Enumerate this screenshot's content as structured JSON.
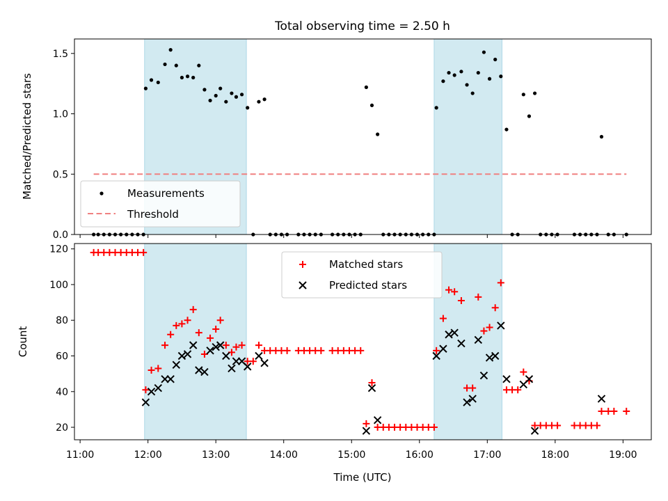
{
  "figure": {
    "title": "Total observing time = 2.50 h",
    "shaded_color": "#add8e6"
  },
  "chart_data": [
    {
      "type": "scatter",
      "ylabel": "Matched/Predicted stars",
      "xlim": [
        "10:55",
        "19:25"
      ],
      "ylim": [
        0,
        1.62
      ],
      "yticks": [
        "0.0",
        "0.5",
        "1.0",
        "1.5"
      ],
      "grid": false,
      "legend_position": "lower-left",
      "shaded_intervals": [
        [
          "11:57",
          "13:27"
        ],
        [
          "16:13",
          "17:13"
        ]
      ],
      "series": [
        {
          "name": "Measurements",
          "marker": "dot",
          "color": "#000000",
          "points": [
            [
              "11:12",
              0
            ],
            [
              "11:16",
              0
            ],
            [
              "11:21",
              0
            ],
            [
              "11:26",
              0
            ],
            [
              "11:31",
              0
            ],
            [
              "11:36",
              0
            ],
            [
              "11:41",
              0
            ],
            [
              "11:46",
              0
            ],
            [
              "11:51",
              0
            ],
            [
              "11:56",
              0
            ],
            [
              "11:58",
              1.21
            ],
            [
              "12:03",
              1.28
            ],
            [
              "12:09",
              1.26
            ],
            [
              "12:15",
              1.41
            ],
            [
              "12:20",
              1.53
            ],
            [
              "12:25",
              1.4
            ],
            [
              "12:30",
              1.3
            ],
            [
              "12:35",
              1.31
            ],
            [
              "12:40",
              1.3
            ],
            [
              "12:45",
              1.4
            ],
            [
              "12:50",
              1.2
            ],
            [
              "12:55",
              1.11
            ],
            [
              "13:00",
              1.15
            ],
            [
              "13:04",
              1.21
            ],
            [
              "13:09",
              1.1
            ],
            [
              "13:14",
              1.17
            ],
            [
              "13:18",
              1.14
            ],
            [
              "13:23",
              1.16
            ],
            [
              "13:28",
              1.05
            ],
            [
              "13:33",
              0
            ],
            [
              "13:38",
              1.1
            ],
            [
              "13:43",
              1.12
            ],
            [
              "13:48",
              0
            ],
            [
              "13:53",
              0
            ],
            [
              "13:58",
              0
            ],
            [
              "14:03",
              0
            ],
            [
              "14:13",
              0
            ],
            [
              "14:18",
              0
            ],
            [
              "14:23",
              0
            ],
            [
              "14:28",
              0
            ],
            [
              "14:33",
              0
            ],
            [
              "14:43",
              0
            ],
            [
              "14:48",
              0
            ],
            [
              "14:53",
              0
            ],
            [
              "14:58",
              0
            ],
            [
              "15:03",
              0
            ],
            [
              "15:08",
              0
            ],
            [
              "15:13",
              1.22
            ],
            [
              "15:18",
              1.07
            ],
            [
              "15:23",
              0.83
            ],
            [
              "15:28",
              0
            ],
            [
              "15:33",
              0
            ],
            [
              "15:38",
              0
            ],
            [
              "15:43",
              0
            ],
            [
              "15:48",
              0
            ],
            [
              "15:53",
              0
            ],
            [
              "15:58",
              0
            ],
            [
              "16:03",
              0
            ],
            [
              "16:08",
              0
            ],
            [
              "16:13",
              0
            ],
            [
              "16:15",
              1.05
            ],
            [
              "16:21",
              1.27
            ],
            [
              "16:26",
              1.34
            ],
            [
              "16:31",
              1.32
            ],
            [
              "16:37",
              1.35
            ],
            [
              "16:42",
              1.24
            ],
            [
              "16:47",
              1.17
            ],
            [
              "16:52",
              1.34
            ],
            [
              "16:57",
              1.51
            ],
            [
              "17:02",
              1.29
            ],
            [
              "17:07",
              1.45
            ],
            [
              "17:12",
              1.31
            ],
            [
              "17:17",
              0.87
            ],
            [
              "17:22",
              0
            ],
            [
              "17:27",
              0
            ],
            [
              "17:32",
              1.16
            ],
            [
              "17:37",
              0.98
            ],
            [
              "17:42",
              1.17
            ],
            [
              "17:47",
              0
            ],
            [
              "17:52",
              0
            ],
            [
              "17:57",
              0
            ],
            [
              "18:02",
              0
            ],
            [
              "18:17",
              0
            ],
            [
              "18:22",
              0
            ],
            [
              "18:27",
              0
            ],
            [
              "18:32",
              0
            ],
            [
              "18:37",
              0
            ],
            [
              "18:41",
              0.81
            ],
            [
              "18:47",
              0
            ],
            [
              "18:52",
              0
            ],
            [
              "19:03",
              0
            ]
          ]
        },
        {
          "name": "Threshold",
          "marker": "dashed-line",
          "color": "#f08080",
          "points": [
            [
              "11:12",
              0.5
            ],
            [
              "19:03",
              0.5
            ]
          ]
        }
      ]
    },
    {
      "type": "scatter",
      "xlabel": "Time (UTC)",
      "ylabel": "Count",
      "xlim": [
        "10:55",
        "19:25"
      ],
      "ylim": [
        13,
        123
      ],
      "xticks": [
        "11:00",
        "12:00",
        "13:00",
        "14:00",
        "15:00",
        "16:00",
        "17:00",
        "18:00",
        "19:00"
      ],
      "yticks": [
        "20",
        "40",
        "60",
        "80",
        "100",
        "120"
      ],
      "grid": false,
      "legend_position": "upper-center",
      "shaded_intervals": [
        [
          "11:57",
          "13:27"
        ],
        [
          "16:13",
          "17:13"
        ]
      ],
      "series": [
        {
          "name": "Matched stars",
          "marker": "plus",
          "color": "#ff0000",
          "points": [
            [
              "11:12",
              118
            ],
            [
              "11:16",
              118
            ],
            [
              "11:21",
              118
            ],
            [
              "11:26",
              118
            ],
            [
              "11:31",
              118
            ],
            [
              "11:36",
              118
            ],
            [
              "11:41",
              118
            ],
            [
              "11:46",
              118
            ],
            [
              "11:51",
              118
            ],
            [
              "11:56",
              118
            ],
            [
              "11:58",
              41
            ],
            [
              "12:03",
              52
            ],
            [
              "12:09",
              53
            ],
            [
              "12:15",
              66
            ],
            [
              "12:20",
              72
            ],
            [
              "12:25",
              77
            ],
            [
              "12:30",
              78
            ],
            [
              "12:35",
              80
            ],
            [
              "12:40",
              86
            ],
            [
              "12:45",
              73
            ],
            [
              "12:50",
              61
            ],
            [
              "12:55",
              70
            ],
            [
              "13:00",
              75
            ],
            [
              "13:04",
              80
            ],
            [
              "13:09",
              66
            ],
            [
              "13:14",
              62
            ],
            [
              "13:18",
              65
            ],
            [
              "13:23",
              66
            ],
            [
              "13:28",
              57
            ],
            [
              "13:33",
              57
            ],
            [
              "13:38",
              66
            ],
            [
              "13:43",
              63
            ],
            [
              "13:48",
              63
            ],
            [
              "13:53",
              63
            ],
            [
              "13:58",
              63
            ],
            [
              "14:03",
              63
            ],
            [
              "14:13",
              63
            ],
            [
              "14:18",
              63
            ],
            [
              "14:23",
              63
            ],
            [
              "14:28",
              63
            ],
            [
              "14:33",
              63
            ],
            [
              "14:43",
              63
            ],
            [
              "14:48",
              63
            ],
            [
              "14:53",
              63
            ],
            [
              "14:58",
              63
            ],
            [
              "15:03",
              63
            ],
            [
              "15:08",
              63
            ],
            [
              "15:13",
              22
            ],
            [
              "15:18",
              45
            ],
            [
              "15:23",
              20
            ],
            [
              "15:28",
              20
            ],
            [
              "15:33",
              20
            ],
            [
              "15:38",
              20
            ],
            [
              "15:43",
              20
            ],
            [
              "15:48",
              20
            ],
            [
              "15:53",
              20
            ],
            [
              "15:58",
              20
            ],
            [
              "16:03",
              20
            ],
            [
              "16:08",
              20
            ],
            [
              "16:13",
              20
            ],
            [
              "16:15",
              63
            ],
            [
              "16:21",
              81
            ],
            [
              "16:26",
              97
            ],
            [
              "16:31",
              96
            ],
            [
              "16:37",
              91
            ],
            [
              "16:42",
              42
            ],
            [
              "16:47",
              42
            ],
            [
              "16:52",
              93
            ],
            [
              "16:57",
              74
            ],
            [
              "17:02",
              76
            ],
            [
              "17:07",
              87
            ],
            [
              "17:12",
              101
            ],
            [
              "17:17",
              41
            ],
            [
              "17:22",
              41
            ],
            [
              "17:27",
              41
            ],
            [
              "17:32",
              51
            ],
            [
              "17:37",
              46
            ],
            [
              "17:42",
              21
            ],
            [
              "17:47",
              21
            ],
            [
              "17:52",
              21
            ],
            [
              "17:57",
              21
            ],
            [
              "18:02",
              21
            ],
            [
              "18:17",
              21
            ],
            [
              "18:22",
              21
            ],
            [
              "18:27",
              21
            ],
            [
              "18:32",
              21
            ],
            [
              "18:37",
              21
            ],
            [
              "18:41",
              29
            ],
            [
              "18:47",
              29
            ],
            [
              "18:52",
              29
            ],
            [
              "19:03",
              29
            ]
          ]
        },
        {
          "name": "Predicted stars",
          "marker": "x",
          "color": "#000000",
          "points": [
            [
              "11:58",
              34
            ],
            [
              "12:03",
              40
            ],
            [
              "12:09",
              42
            ],
            [
              "12:15",
              47
            ],
            [
              "12:20",
              47
            ],
            [
              "12:25",
              55
            ],
            [
              "12:30",
              60
            ],
            [
              "12:35",
              61
            ],
            [
              "12:40",
              66
            ],
            [
              "12:45",
              52
            ],
            [
              "12:50",
              51
            ],
            [
              "12:55",
              63
            ],
            [
              "13:00",
              65
            ],
            [
              "13:04",
              66
            ],
            [
              "13:09",
              60
            ],
            [
              "13:14",
              53
            ],
            [
              "13:18",
              57
            ],
            [
              "13:23",
              57
            ],
            [
              "13:28",
              54
            ],
            [
              "13:38",
              60
            ],
            [
              "13:43",
              56
            ],
            [
              "15:13",
              18
            ],
            [
              "15:18",
              42
            ],
            [
              "15:23",
              24
            ],
            [
              "16:15",
              60
            ],
            [
              "16:21",
              64
            ],
            [
              "16:26",
              72
            ],
            [
              "16:31",
              73
            ],
            [
              "16:37",
              67
            ],
            [
              "16:42",
              34
            ],
            [
              "16:47",
              36
            ],
            [
              "16:52",
              69
            ],
            [
              "16:57",
              49
            ],
            [
              "17:02",
              59
            ],
            [
              "17:07",
              60
            ],
            [
              "17:12",
              77
            ],
            [
              "17:17",
              47
            ],
            [
              "17:32",
              44
            ],
            [
              "17:37",
              47
            ],
            [
              "17:42",
              18
            ],
            [
              "18:41",
              36
            ]
          ]
        }
      ]
    }
  ]
}
